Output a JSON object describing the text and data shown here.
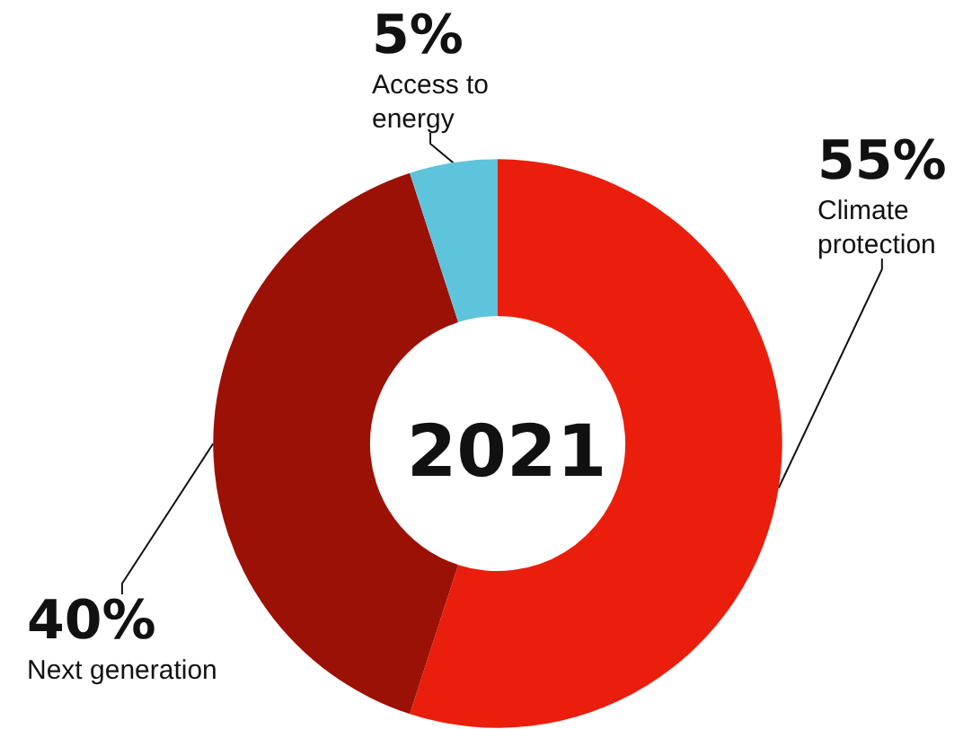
{
  "chart_data": {
    "type": "donut",
    "title": "2021",
    "categories": [
      "Climate protection",
      "Next generation",
      "Access to energy"
    ],
    "values": [
      55,
      40,
      5
    ],
    "colors": [
      "#ea1e0c",
      "#9b1106",
      "#5ec4dc"
    ],
    "value_labels": [
      "55%",
      "40%",
      "5%"
    ],
    "legend": false
  }
}
